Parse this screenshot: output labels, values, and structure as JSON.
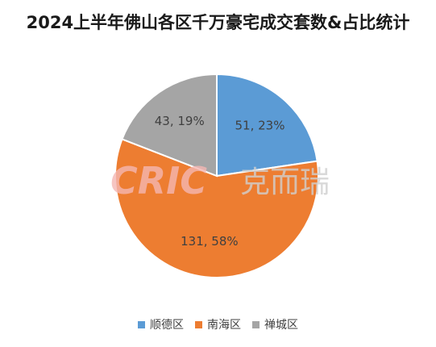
{
  "chart_data": {
    "type": "pie",
    "title": "2024上半年佛山各区千万豪宅成交套数&占比统计",
    "slices": [
      {
        "name": "顺德区",
        "value": 51,
        "percent": 23,
        "label": "51, 23%",
        "color": "#5B9BD5"
      },
      {
        "name": "南海区",
        "value": 131,
        "percent": 58,
        "label": "131, 58%",
        "color": "#ED7D31"
      },
      {
        "name": "禅城区",
        "value": 43,
        "percent": 19,
        "label": "43, 19%",
        "color": "#A5A5A5"
      }
    ],
    "legend_position": "bottom"
  },
  "watermark": {
    "logo_text": "CRIC",
    "brand_text": "克而瑞"
  }
}
